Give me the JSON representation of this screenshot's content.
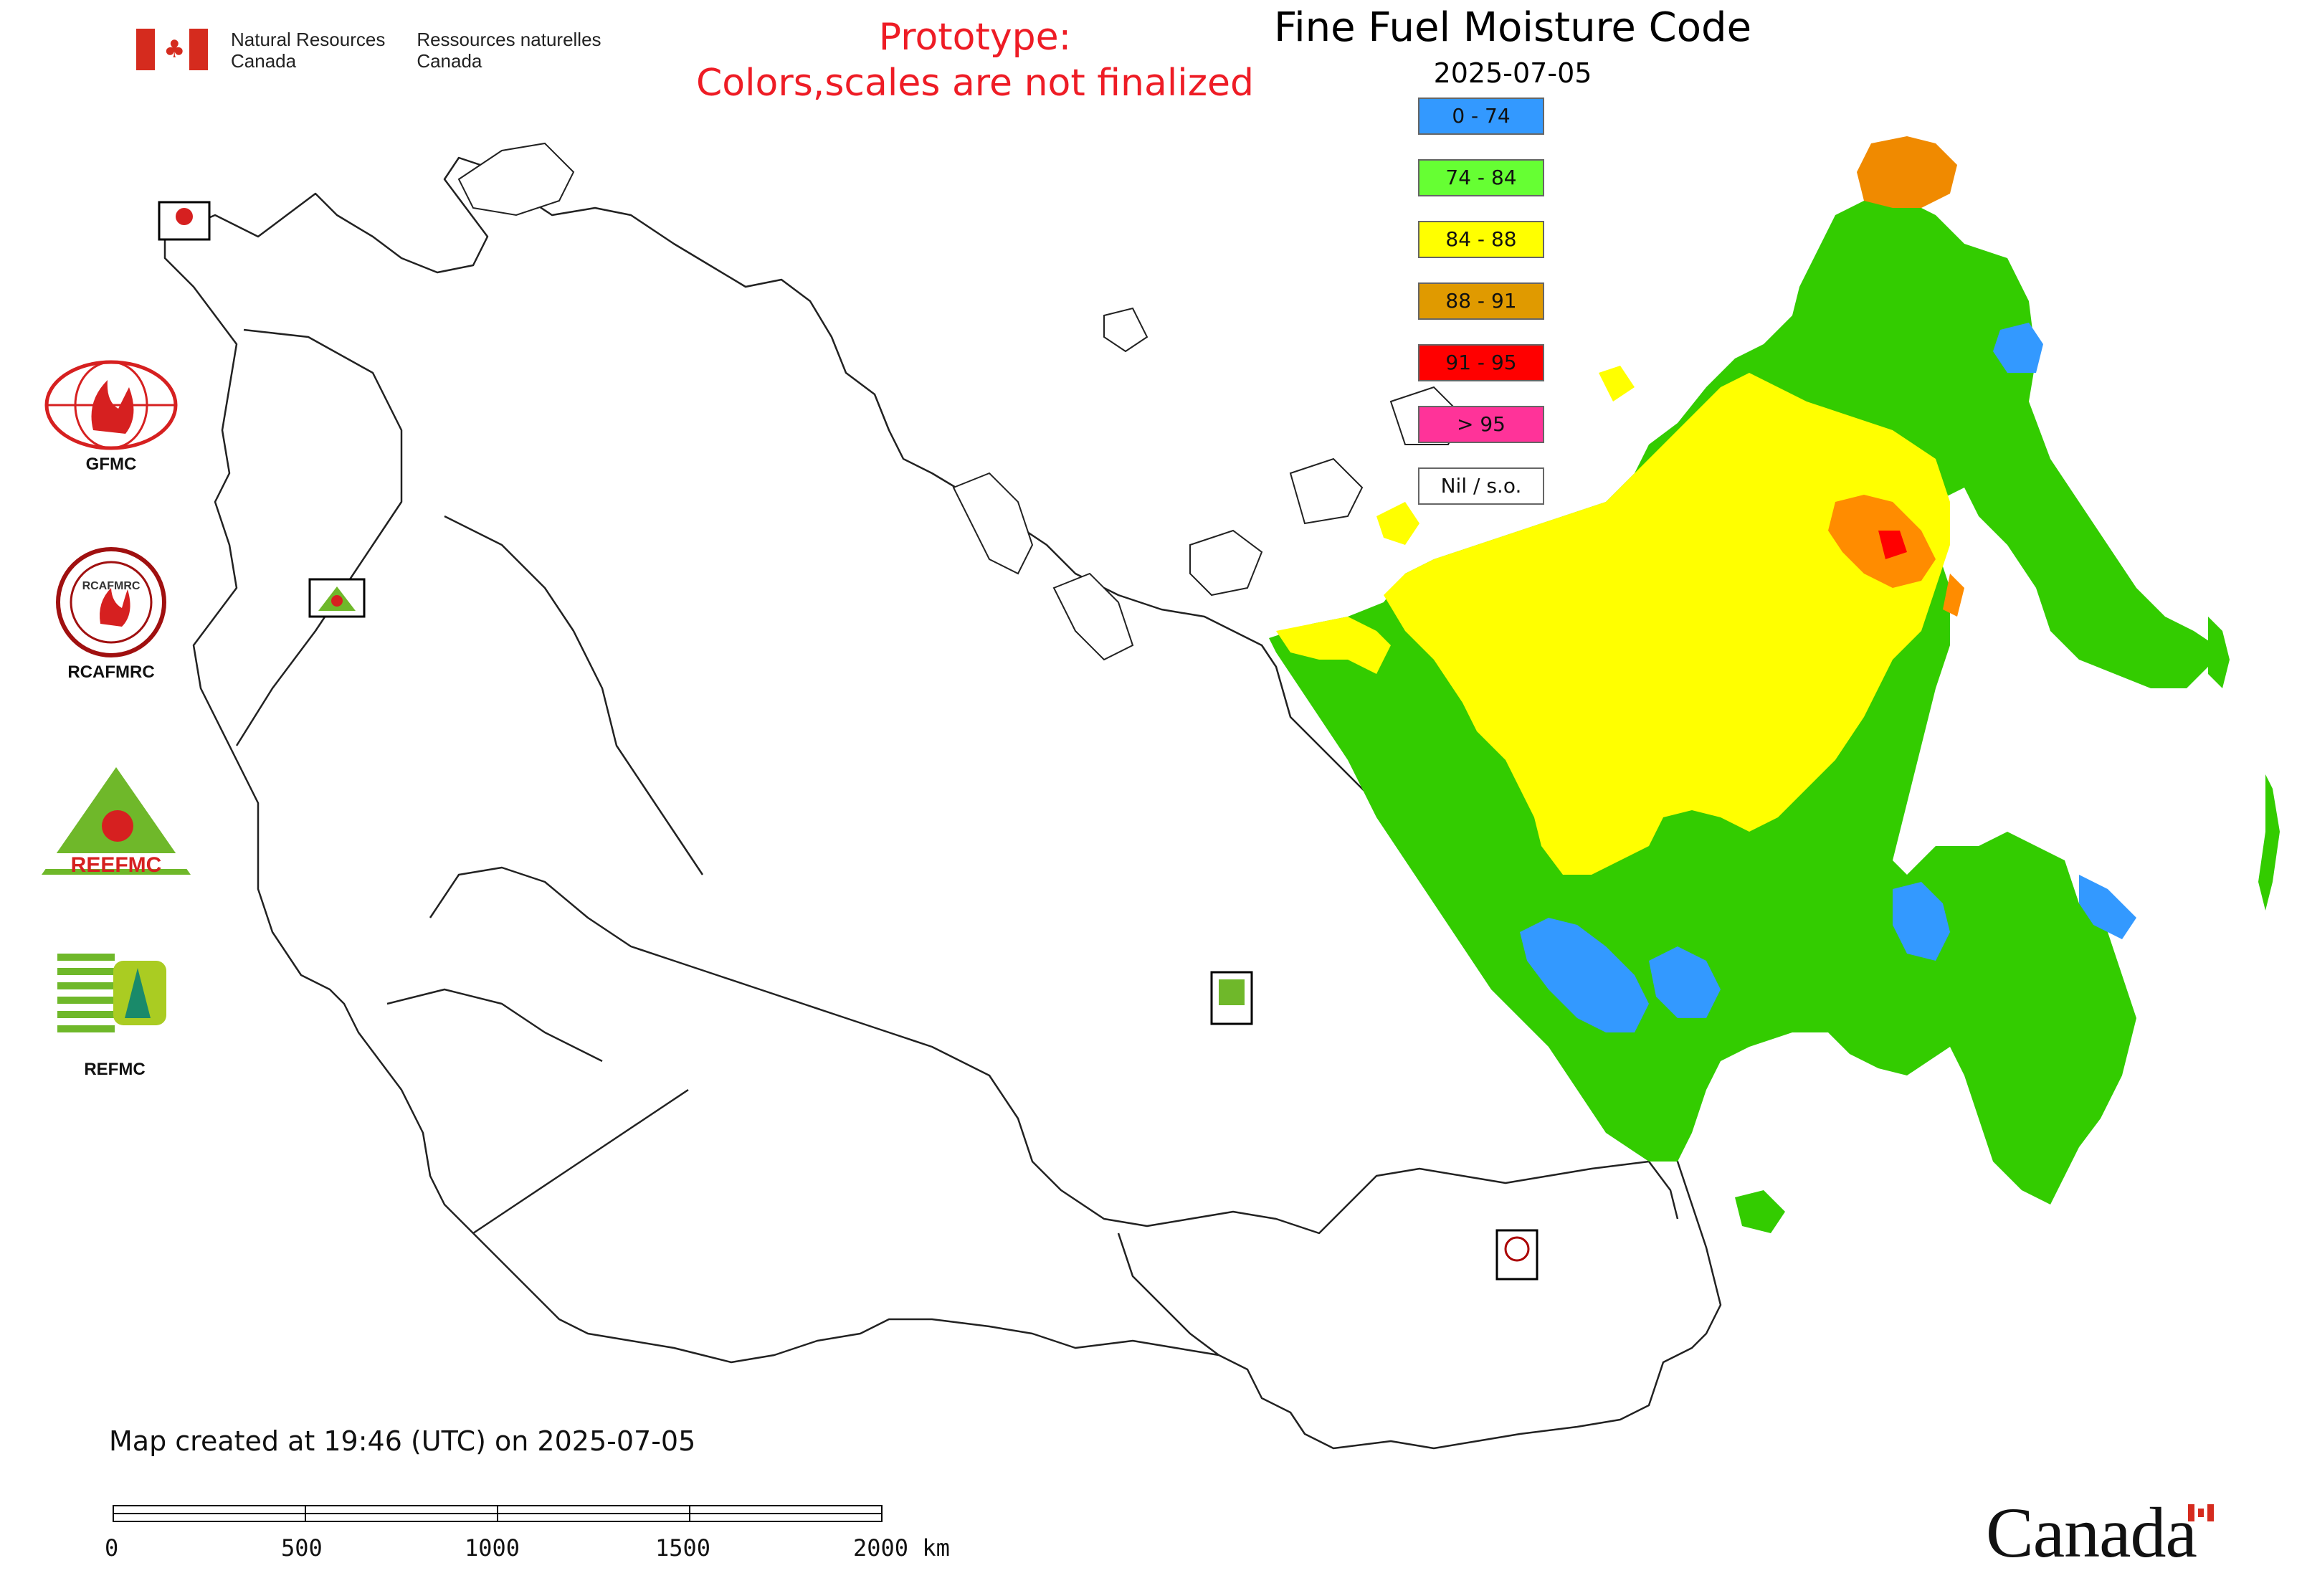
{
  "header": {
    "agency_en_1": "Natural Resources",
    "agency_en_2": "Canada",
    "agency_fr_1": "Ressources naturelles",
    "agency_fr_2": "Canada",
    "prototype_line1": "Prototype:",
    "prototype_line2": "Colors,scales are not finalized",
    "title": "Fine Fuel Moisture Code",
    "date": "2025-07-05"
  },
  "legend": [
    {
      "label": "0 - 74",
      "color": "#3399ff"
    },
    {
      "label": "74 - 84",
      "color": "#66ff33"
    },
    {
      "label": "84 - 88",
      "color": "#ffff00"
    },
    {
      "label": "88 - 91",
      "color": "#e09a00"
    },
    {
      "label": "91 - 95",
      "color": "#ff0000"
    },
    {
      "label": "> 95",
      "color": "#ff3399"
    },
    {
      "label": "Nil / s.o.",
      "color": "#ffffff"
    }
  ],
  "logos": [
    {
      "label": "GFMC"
    },
    {
      "label": "RCAFMRC"
    },
    {
      "label": "REEFMC"
    },
    {
      "label": "REFMC"
    }
  ],
  "footer": {
    "created": "Map created at 19:46 (UTC) on 2025-07-05",
    "wordmark": "Canada"
  },
  "scale_bar": {
    "ticks": [
      "0",
      "500",
      "1000",
      "1500",
      "2000 km"
    ]
  }
}
